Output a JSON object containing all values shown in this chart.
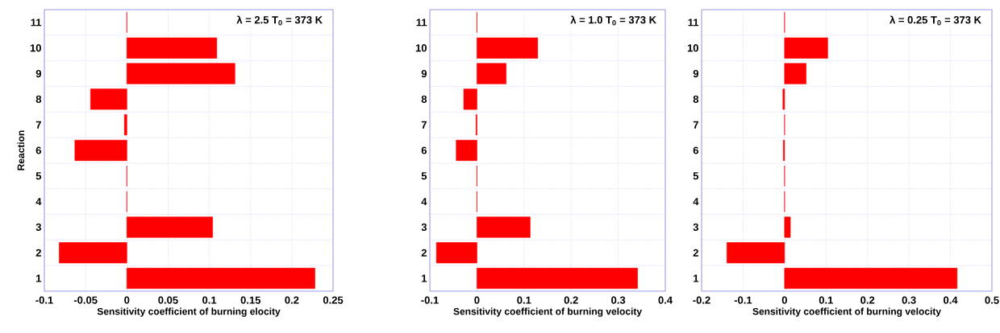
{
  "chart_data": [
    {
      "type": "bar",
      "orientation": "horizontal",
      "categories": [
        "11",
        "10",
        "9",
        "8",
        "7",
        "6",
        "5",
        "4",
        "3",
        "2",
        "1"
      ],
      "values": [
        0,
        0.109,
        0.131,
        -0.044,
        -0.003,
        -0.063,
        0,
        0,
        0.104,
        -0.082,
        0.228
      ],
      "color": "#ff0000",
      "xlim": [
        -0.1,
        0.25
      ],
      "xticks": [
        -0.1,
        -0.05,
        0,
        0.05,
        0.1,
        0.15,
        0.2,
        0.25
      ],
      "xlabel": "Sensitivity coefficient of burning elocity",
      "ylabel": "Reaction",
      "annotations": [
        "λ = 2.5  T$_{0}$ = 373 K"
      ],
      "grid": true
    },
    {
      "type": "bar",
      "orientation": "horizontal",
      "categories": [
        "11",
        "10",
        "9",
        "8",
        "7",
        "6",
        "5",
        "4",
        "3",
        "2",
        "1"
      ],
      "values": [
        0,
        0.129,
        0.062,
        -0.028,
        -0.002,
        -0.044,
        0,
        0,
        0.113,
        -0.086,
        0.341
      ],
      "color": "#ff0000",
      "xlim": [
        -0.1,
        0.4
      ],
      "xticks": [
        -0.1,
        0,
        0.1,
        0.2,
        0.3,
        0.4
      ],
      "xlabel": "Sensitivity coefficient of burning velocity",
      "annotations": [
        "λ = 1.0  T$_{0}$ = 373 K"
      ],
      "grid": true
    },
    {
      "type": "bar",
      "orientation": "horizontal",
      "categories": [
        "11",
        "10",
        "9",
        "8",
        "7",
        "6",
        "5",
        "4",
        "3",
        "2",
        "1"
      ],
      "values": [
        0,
        0.104,
        0.052,
        -0.004,
        0,
        -0.003,
        0,
        0,
        0.014,
        -0.139,
        0.416
      ],
      "color": "#ff0000",
      "xlim": [
        -0.2,
        0.5
      ],
      "xticks": [
        -0.2,
        -0.1,
        0,
        0.1,
        0.2,
        0.3,
        0.4,
        0.5
      ],
      "xlabel": "Sensitivity coefficient of burning velocity",
      "annotations": [
        "λ = 0.25    T$_{0}$ = 373 K"
      ],
      "grid": true
    }
  ]
}
